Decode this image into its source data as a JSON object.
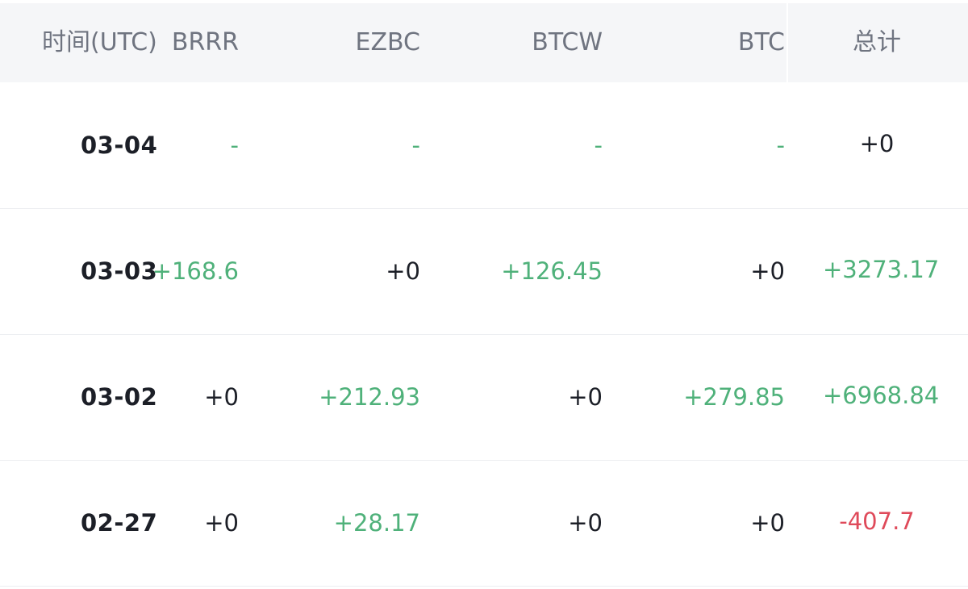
{
  "header": {
    "time": "时间(UTC)",
    "col1": "BRRR",
    "col2": "EZBC",
    "col3": "BTCW",
    "col4": "BTC",
    "total": "总计"
  },
  "rows": [
    {
      "date": "03-04",
      "c1": "-",
      "c2": "-",
      "c3": "-",
      "c4": "-",
      "total": "+0"
    },
    {
      "date": "03-03",
      "c1": "+168.6",
      "c2": "+0",
      "c3": "+126.45",
      "c4": "+0",
      "total": "+3273.17"
    },
    {
      "date": "03-02",
      "c1": "+0",
      "c2": "+212.93",
      "c3": "+0",
      "c4": "+279.85",
      "total": "+6968.84"
    },
    {
      "date": "02-27",
      "c1": "+0",
      "c2": "+28.17",
      "c3": "+0",
      "c4": "+0",
      "total": "-407.7"
    }
  ],
  "colors": {
    "positive": "#4fb17a",
    "negative": "#df4a5a",
    "neutral": "#1c1f27",
    "header_bg": "#f5f6f8",
    "header_text": "#6f7480"
  }
}
